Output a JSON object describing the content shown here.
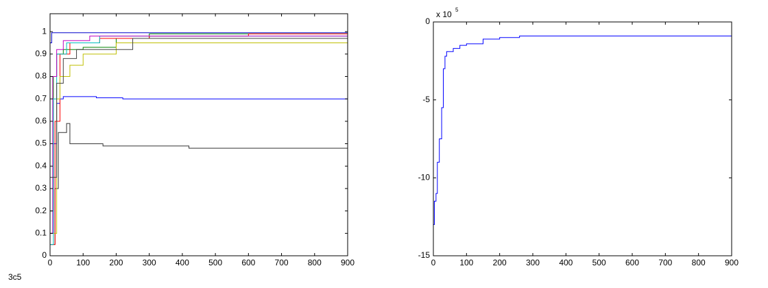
{
  "chart_data": [
    {
      "type": "line",
      "step": true,
      "xlim": [
        0,
        900
      ],
      "xticks": [
        0,
        100,
        200,
        300,
        400,
        500,
        600,
        700,
        800,
        900
      ],
      "ylim": [
        0,
        1.08
      ],
      "yticks": [
        0,
        0.1,
        0.2,
        0.3,
        0.4,
        0.5,
        0.6,
        0.7,
        0.8,
        0.9,
        1
      ],
      "series": [
        {
          "color": "#0000ff",
          "x": [
            0,
            10,
            20,
            30,
            40,
            140,
            220,
            900
          ],
          "values": [
            0.1,
            0.5,
            0.68,
            0.7,
            0.71,
            0.705,
            0.7,
            0.7
          ]
        },
        {
          "color": "#333333",
          "x": [
            0,
            15,
            25,
            50,
            60,
            160,
            420,
            900
          ],
          "values": [
            0.05,
            0.3,
            0.55,
            0.59,
            0.5,
            0.49,
            0.48,
            0.48
          ]
        },
        {
          "color": "#0000cc",
          "x": [
            0,
            5,
            900
          ],
          "values": [
            0.95,
            0.995,
            0.995
          ]
        },
        {
          "color": "#008000",
          "x": [
            0,
            10,
            20,
            40,
            100,
            200,
            300,
            900
          ],
          "values": [
            0.2,
            0.8,
            0.9,
            0.92,
            0.93,
            0.97,
            0.99,
            0.99
          ]
        },
        {
          "color": "#ff0000",
          "x": [
            0,
            15,
            30,
            60,
            150,
            300,
            600,
            900
          ],
          "values": [
            0.05,
            0.6,
            0.9,
            0.95,
            0.97,
            0.98,
            0.99,
            0.99
          ]
        },
        {
          "color": "#bfbf00",
          "x": [
            0,
            20,
            30,
            60,
            100,
            200,
            900
          ],
          "values": [
            0.1,
            0.7,
            0.8,
            0.85,
            0.9,
            0.95,
            0.985
          ]
        },
        {
          "color": "#00bfbf",
          "x": [
            0,
            10,
            20,
            50,
            150,
            900
          ],
          "values": [
            0.05,
            0.7,
            0.9,
            0.95,
            0.98,
            0.99
          ]
        },
        {
          "color": "#bf00bf",
          "x": [
            0,
            8,
            20,
            40,
            120,
            900
          ],
          "values": [
            0.1,
            0.8,
            0.92,
            0.96,
            0.98,
            0.99
          ]
        },
        {
          "color": "#404040",
          "x": [
            0,
            20,
            40,
            80,
            250,
            900
          ],
          "values": [
            0.35,
            0.77,
            0.88,
            0.92,
            0.97,
            0.99
          ]
        }
      ]
    },
    {
      "type": "line",
      "step": true,
      "xlim": [
        0,
        900
      ],
      "xticks": [
        0,
        100,
        200,
        300,
        400,
        500,
        600,
        700,
        800,
        900
      ],
      "ylim": [
        -1500000,
        0
      ],
      "yticks": [
        {
          "value": -1500000,
          "label": "-15"
        },
        {
          "value": -1000000,
          "label": "-10"
        },
        {
          "value": -500000,
          "label": "-5"
        },
        0
      ],
      "y_multiplier": "x 10",
      "y_multiplier_exponent": "5",
      "series": [
        {
          "color": "#0000ff",
          "x": [
            0,
            3,
            8,
            12,
            18,
            25,
            30,
            35,
            40,
            60,
            80,
            100,
            150,
            200,
            260,
            900
          ],
          "values": [
            -1300000,
            -1150000,
            -1100000,
            -900000,
            -750000,
            -550000,
            -300000,
            -220000,
            -190000,
            -170000,
            -150000,
            -140000,
            -110000,
            -100000,
            -90000,
            -90000
          ]
        }
      ]
    }
  ],
  "figure_label": "3c5"
}
